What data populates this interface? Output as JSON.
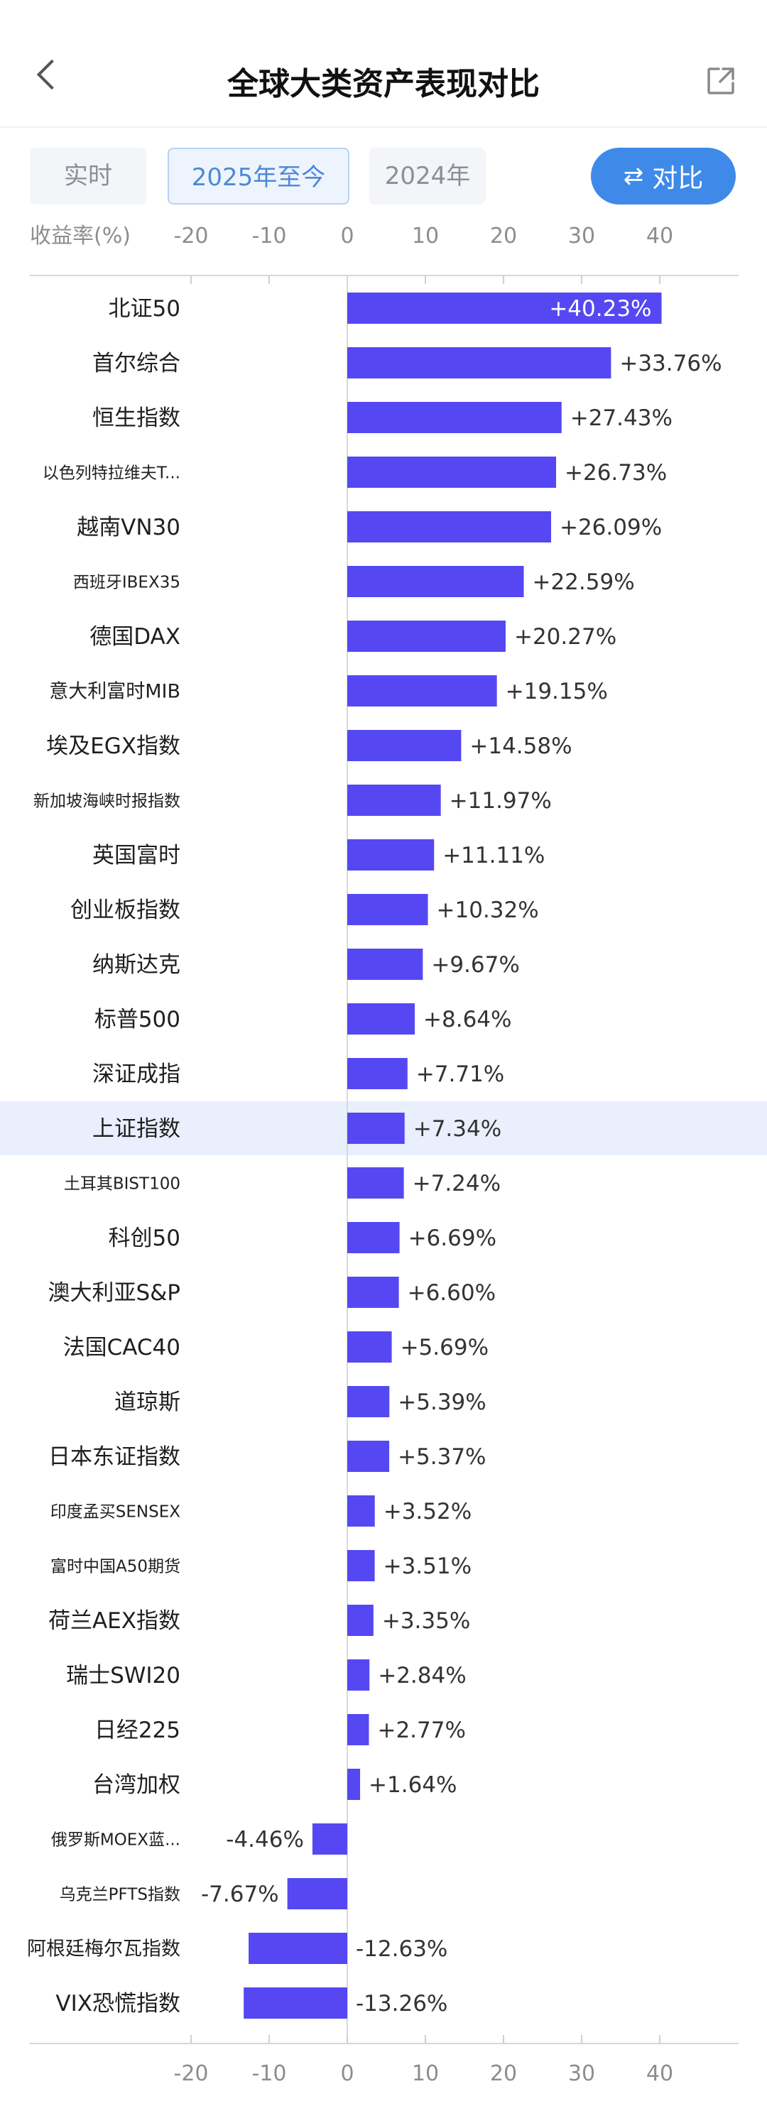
{
  "header": {
    "title": "全球大类资产表现对比"
  },
  "tabs": [
    {
      "label": "实时",
      "active": false
    },
    {
      "label": "2025年至今",
      "active": true
    },
    {
      "label": "2024年",
      "active": false
    }
  ],
  "compare_button": {
    "label": "对比",
    "icon": "swap-arrows-icon"
  },
  "colors": {
    "bar": "#5548f2",
    "highlight_row": "#e9effd",
    "tab_active": "#4d88d6",
    "button": "#3f8ae9"
  },
  "chart_data": {
    "type": "bar",
    "orientation": "horizontal",
    "xlabel": "收益率(%)",
    "xlim": [
      -22,
      50
    ],
    "ticks": [
      -20,
      -10,
      0,
      10,
      20,
      30,
      40
    ],
    "highlighted_category": "上证指数",
    "categories": [
      "北证50",
      "首尔综合",
      "恒生指数",
      "以色列特拉维夫T...",
      "越南VN30",
      "西班牙IBEX35",
      "德国DAX",
      "意大利富时MIB",
      "埃及EGX指数",
      "新加坡海峡时报指数",
      "英国富时",
      "创业板指数",
      "纳斯达克",
      "标普500",
      "深证成指",
      "上证指数",
      "土耳其BIST100",
      "科创50",
      "澳大利亚S&P",
      "法国CAC40",
      "道琼斯",
      "日本东证指数",
      "印度孟买SENSEX",
      "富时中国A50期货",
      "荷兰AEX指数",
      "瑞士SWI20",
      "日经225",
      "台湾加权",
      "俄罗斯MOEX蓝...",
      "乌克兰PFTS指数",
      "阿根廷梅尔瓦指数",
      "VIX恐慌指数"
    ],
    "values": [
      40.23,
      33.76,
      27.43,
      26.73,
      26.09,
      22.59,
      20.27,
      19.15,
      14.58,
      11.97,
      11.11,
      10.32,
      9.67,
      8.64,
      7.71,
      7.34,
      7.24,
      6.69,
      6.6,
      5.69,
      5.39,
      5.37,
      3.52,
      3.51,
      3.35,
      2.84,
      2.77,
      1.64,
      -4.46,
      -7.67,
      -12.63,
      -13.26
    ],
    "value_labels": [
      "+40.23%",
      "+33.76%",
      "+27.43%",
      "+26.73%",
      "+26.09%",
      "+22.59%",
      "+20.27%",
      "+19.15%",
      "+14.58%",
      "+11.97%",
      "+11.11%",
      "+10.32%",
      "+9.67%",
      "+8.64%",
      "+7.71%",
      "+7.34%",
      "+7.24%",
      "+6.69%",
      "+6.60%",
      "+5.69%",
      "+5.39%",
      "+5.37%",
      "+3.52%",
      "+3.51%",
      "+3.35%",
      "+2.84%",
      "+2.77%",
      "+1.64%",
      "-4.46%",
      "-7.67%",
      "-12.63%",
      "-13.26%"
    ]
  }
}
